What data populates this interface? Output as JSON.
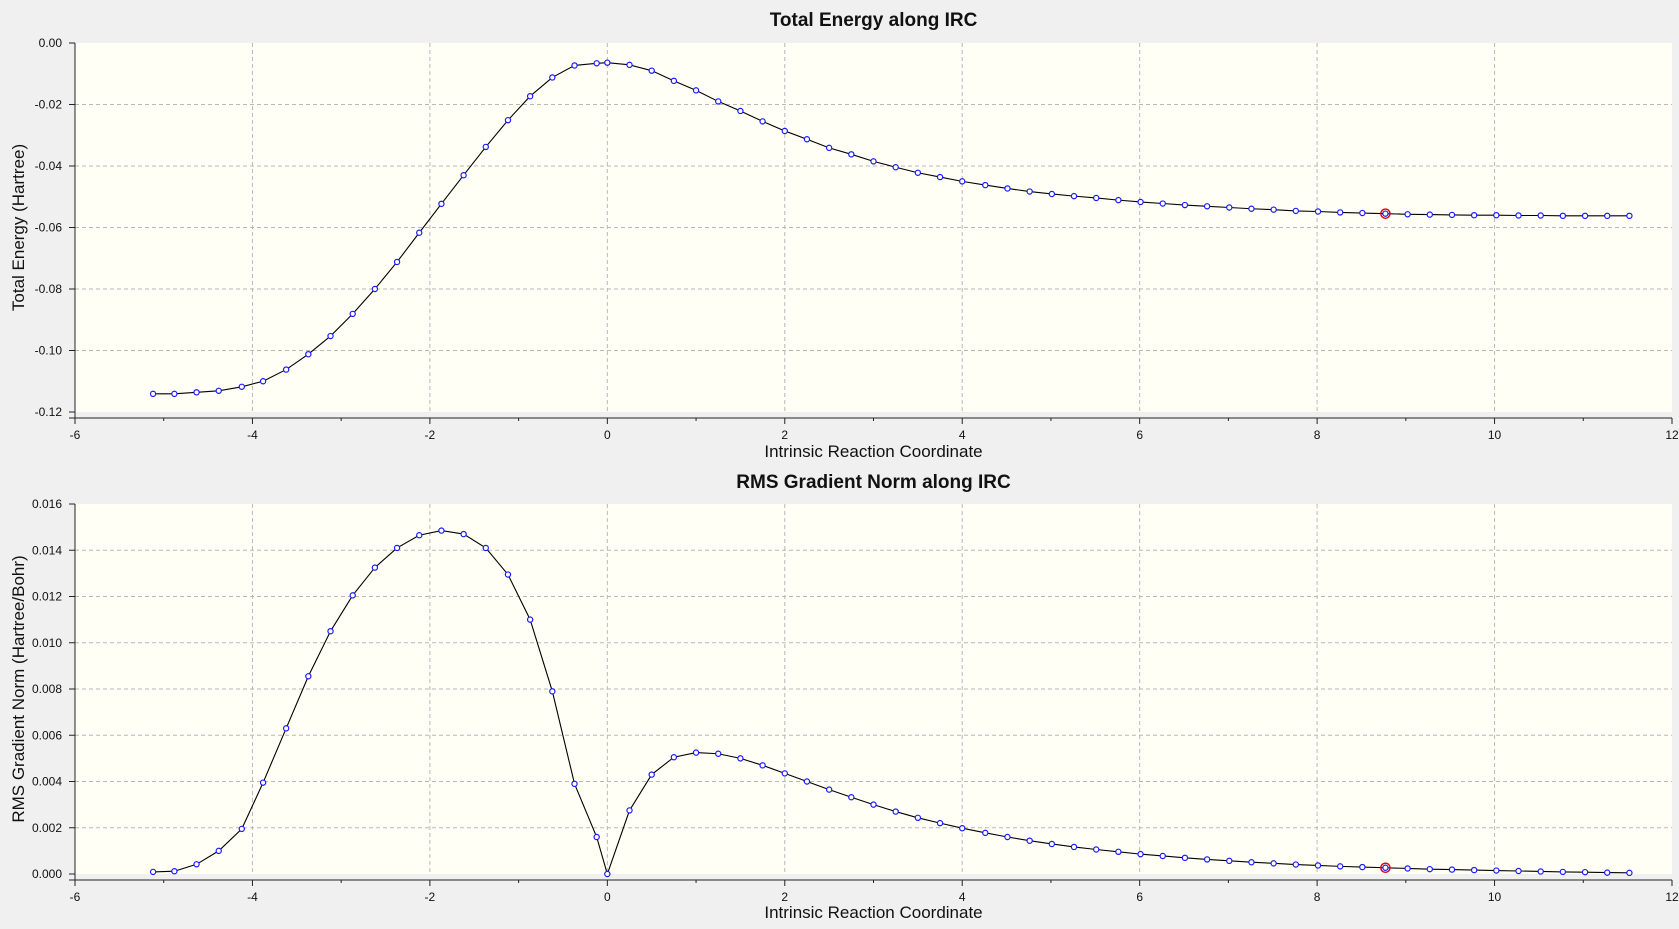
{
  "chart_data": [
    {
      "type": "line",
      "title": "Total Energy along IRC",
      "xlabel": "Intrinsic Reaction Coordinate",
      "ylabel": "Total Energy (Hartree)",
      "xlim": [
        -6,
        12
      ],
      "ylim": [
        -0.12,
        0.0
      ],
      "xticks": [
        -6,
        -4,
        -2,
        0,
        2,
        4,
        6,
        8,
        10,
        12
      ],
      "yticks": [
        0.0,
        -0.02,
        -0.04,
        -0.06,
        -0.08,
        -0.1,
        -0.12
      ],
      "xtick_labels": [
        "-6",
        "-4",
        "-2",
        "0",
        "2",
        "4",
        "6",
        "8",
        "10",
        "12"
      ],
      "ytick_labels": [
        "0.00",
        "-0.02",
        "-0.04",
        "-0.06",
        "-0.08",
        "-0.10",
        "-0.12"
      ],
      "grid": true,
      "colors": {
        "line": "#000000",
        "marker": "#1a1aff",
        "selected": "#e00000"
      },
      "selected_x": 8.77,
      "series": [
        {
          "x": [
            -5.12,
            -4.88,
            -4.63,
            -4.38,
            -4.12,
            -3.88,
            -3.62,
            -3.37,
            -3.12,
            -2.87,
            -2.62,
            -2.37,
            -2.12,
            -1.87,
            -1.62,
            -1.37,
            -1.12,
            -0.87,
            -0.62,
            -0.37,
            -0.12,
            0.0,
            0.25,
            0.5,
            0.75,
            1.0,
            1.25,
            1.5,
            1.75,
            2.0,
            2.25,
            2.5,
            2.75,
            3.0,
            3.25,
            3.5,
            3.75,
            4.0,
            4.26,
            4.51,
            4.76,
            5.01,
            5.26,
            5.51,
            5.76,
            6.01,
            6.26,
            6.51,
            6.76,
            7.01,
            7.26,
            7.51,
            7.76,
            8.01,
            8.26,
            8.51,
            8.77,
            9.02,
            9.27,
            9.52,
            9.77,
            10.02,
            10.27,
            10.52,
            10.77,
            11.02,
            11.27,
            11.52
          ],
          "values": [
            -0.1141,
            -0.1141,
            -0.1136,
            -0.1131,
            -0.1118,
            -0.11,
            -0.1062,
            -0.1012,
            -0.0953,
            -0.0881,
            -0.08,
            -0.0712,
            -0.0617,
            -0.0523,
            -0.043,
            -0.0338,
            -0.0251,
            -0.0173,
            -0.0112,
            -0.0073,
            -0.0066,
            -0.0064,
            -0.0071,
            -0.009,
            -0.0123,
            -0.0154,
            -0.019,
            -0.0221,
            -0.0255,
            -0.0286,
            -0.0313,
            -0.0341,
            -0.0362,
            -0.0385,
            -0.0404,
            -0.0422,
            -0.0436,
            -0.045,
            -0.0462,
            -0.0473,
            -0.0483,
            -0.0491,
            -0.0498,
            -0.0504,
            -0.0511,
            -0.0517,
            -0.0522,
            -0.0527,
            -0.0531,
            -0.0535,
            -0.0539,
            -0.0542,
            -0.0546,
            -0.0548,
            -0.0551,
            -0.0553,
            -0.0555,
            -0.0557,
            -0.0558,
            -0.0559,
            -0.056,
            -0.056,
            -0.0561,
            -0.0561,
            -0.0562,
            -0.0562,
            -0.0562,
            -0.0562
          ]
        }
      ]
    },
    {
      "type": "line",
      "title": "RMS Gradient Norm along IRC",
      "xlabel": "Intrinsic Reaction Coordinate",
      "ylabel": "RMS Gradient Norm (Hartree/Bohr)",
      "xlim": [
        -6,
        12
      ],
      "ylim": [
        0.0,
        0.016
      ],
      "xticks": [
        -6,
        -4,
        -2,
        0,
        2,
        4,
        6,
        8,
        10,
        12
      ],
      "yticks": [
        0.016,
        0.014,
        0.012,
        0.01,
        0.008,
        0.006,
        0.004,
        0.002,
        0.0
      ],
      "xtick_labels": [
        "-6",
        "-4",
        "-2",
        "0",
        "2",
        "4",
        "6",
        "8",
        "10",
        "12"
      ],
      "ytick_labels": [
        "0.016",
        "0.014",
        "0.012",
        "0.010",
        "0.008",
        "0.006",
        "0.004",
        "0.002",
        "0.000"
      ],
      "grid": true,
      "colors": {
        "line": "#000000",
        "marker": "#1a1aff",
        "selected": "#e00000"
      },
      "selected_x": 8.77,
      "series": [
        {
          "x": [
            -5.12,
            -4.88,
            -4.63,
            -4.38,
            -4.12,
            -3.88,
            -3.62,
            -3.37,
            -3.12,
            -2.87,
            -2.62,
            -2.37,
            -2.12,
            -1.87,
            -1.62,
            -1.37,
            -1.12,
            -0.87,
            -0.62,
            -0.37,
            -0.12,
            0.0,
            0.25,
            0.5,
            0.75,
            1.0,
            1.25,
            1.5,
            1.75,
            2.0,
            2.25,
            2.5,
            2.75,
            3.0,
            3.25,
            3.5,
            3.75,
            4.0,
            4.26,
            4.51,
            4.76,
            5.01,
            5.26,
            5.51,
            5.76,
            6.01,
            6.26,
            6.51,
            6.76,
            7.01,
            7.26,
            7.51,
            7.76,
            8.01,
            8.26,
            8.51,
            8.77,
            9.02,
            9.27,
            9.52,
            9.77,
            10.02,
            10.27,
            10.52,
            10.77,
            11.02,
            11.27,
            11.52
          ],
          "values": [
            9e-05,
            0.00012,
            0.00042,
            0.001,
            0.00195,
            0.00395,
            0.0063,
            0.00855,
            0.0105,
            0.01205,
            0.01325,
            0.0141,
            0.01465,
            0.01485,
            0.0147,
            0.0141,
            0.01295,
            0.011,
            0.0079,
            0.0039,
            0.0016,
            0.0,
            0.00275,
            0.0043,
            0.00505,
            0.00525,
            0.0052,
            0.005,
            0.0047,
            0.00435,
            0.004,
            0.00365,
            0.00332,
            0.003,
            0.0027,
            0.00243,
            0.0022,
            0.00198,
            0.00178,
            0.0016,
            0.00144,
            0.0013,
            0.00117,
            0.00106,
            0.00096,
            0.00086,
            0.00078,
            0.0007,
            0.00063,
            0.00057,
            0.00051,
            0.00046,
            0.00041,
            0.00037,
            0.00033,
            0.0003,
            0.00027,
            0.00024,
            0.00021,
            0.00019,
            0.00017,
            0.00015,
            0.00013,
            0.00011,
            9e-05,
            8e-05,
            6e-05,
            5e-05
          ]
        }
      ]
    }
  ]
}
